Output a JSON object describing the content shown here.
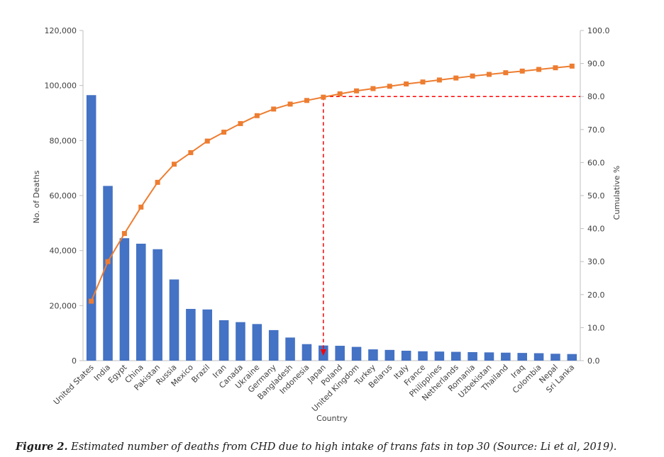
{
  "chart_data": {
    "type": "bar",
    "categories": [
      "United States",
      "India",
      "Egypt",
      "China",
      "Pakistan",
      "Russia",
      "Mexico",
      "Brazil",
      "Iran",
      "Canada",
      "Ukraine",
      "Germany",
      "Bangladesh",
      "Indonesia",
      "Japan",
      "Poland",
      "United Kingdom",
      "Turkey",
      "Belarus",
      "Italy",
      "France",
      "Philippines",
      "Netherlands",
      "Romania",
      "Uzbekistan",
      "Thailand",
      "Iraq",
      "Colombia",
      "Nepal",
      "Sri Lanka"
    ],
    "series": [
      {
        "name": "No. of Deaths",
        "type": "bar",
        "axis": "left",
        "color": "#4472c4",
        "values": [
          96500,
          63500,
          44500,
          42500,
          40500,
          29500,
          18800,
          18600,
          14700,
          14000,
          13300,
          11100,
          8400,
          6000,
          5500,
          5400,
          5000,
          4100,
          3900,
          3600,
          3400,
          3300,
          3200,
          3100,
          3000,
          2900,
          2800,
          2700,
          2500,
          2400
        ]
      },
      {
        "name": "Cumulative %",
        "type": "line",
        "axis": "right",
        "color": "#ed7d31",
        "values": [
          18.0,
          30.0,
          38.5,
          46.5,
          54.0,
          59.5,
          63.0,
          66.5,
          69.2,
          71.8,
          74.2,
          76.2,
          77.7,
          78.8,
          79.8,
          80.8,
          81.7,
          82.4,
          83.1,
          83.8,
          84.4,
          85.0,
          85.6,
          86.2,
          86.7,
          87.2,
          87.7,
          88.2,
          88.7,
          89.2
        ]
      }
    ],
    "threshold": {
      "value": 80.0,
      "at_category": "Japan",
      "color": "#ff0000"
    },
    "xlabel": "Country",
    "ylabel": "No. of Deaths",
    "y2label": "Cumulative %",
    "ylim": [
      0,
      120000
    ],
    "y2lim": [
      0,
      100
    ],
    "yticks": [
      "0",
      "20,000",
      "40,000",
      "60,000",
      "80,000",
      "100,000",
      "120,000"
    ],
    "y2ticks": [
      "0.0",
      "10.0",
      "20.0",
      "30.0",
      "40.0",
      "50.0",
      "60.0",
      "70.0",
      "80.0",
      "90.0",
      "100.0"
    ]
  },
  "caption": {
    "label": "Figure 2.",
    "text": "Estimated number of deaths from CHD due to high intake of trans fats in top 30 (Source: Li et al, 2019)."
  }
}
